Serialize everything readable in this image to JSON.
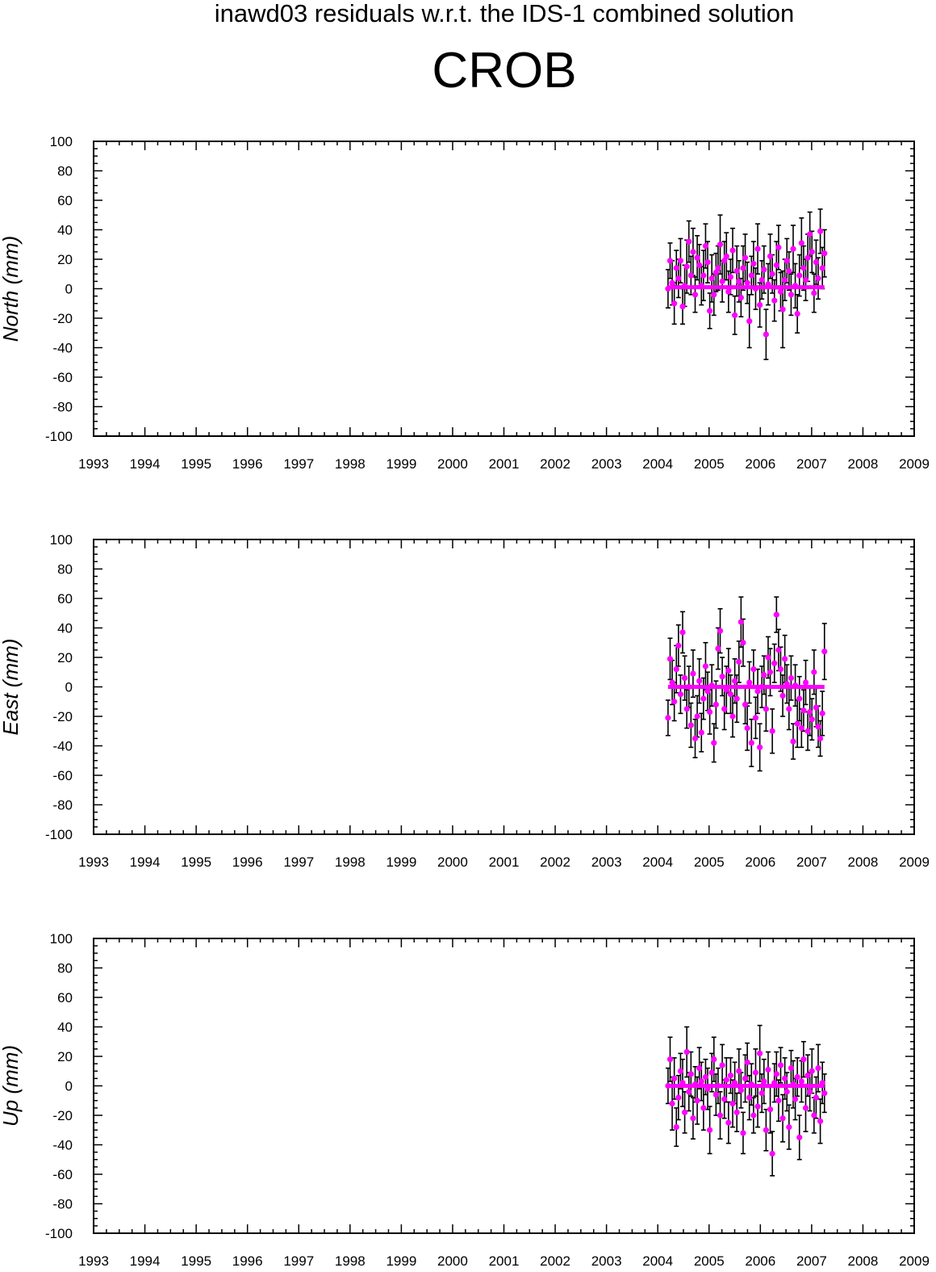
{
  "title": "inawd03 residuals w.r.t. the IDS-1 combined solution",
  "station": "CROB",
  "colors": {
    "marker": "#ff00ff",
    "errorbar": "#000000",
    "axis": "#000000"
  },
  "chart_data": [
    {
      "type": "scatter",
      "ylabel": "North (mm)",
      "xlim": [
        1993,
        2009
      ],
      "ylim": [
        -100,
        100
      ],
      "xticks": [
        1993,
        1994,
        1995,
        1996,
        1997,
        1998,
        1999,
        2000,
        2001,
        2002,
        2003,
        2004,
        2005,
        2006,
        2007,
        2008,
        2009
      ],
      "yticks": [
        100,
        80,
        60,
        40,
        20,
        0,
        -20,
        -40,
        -60,
        -80,
        -100
      ],
      "grid": false,
      "series": [
        {
          "x_range": [
            2004.2,
            2007.25
          ],
          "y": [
            0,
            19,
            4,
            -10,
            14,
            7,
            19,
            -12,
            2,
            15,
            32,
            9,
            25,
            -4,
            21,
            16,
            2,
            9,
            29,
            18,
            -15,
            7,
            -4,
            11,
            14,
            30,
            5,
            19,
            22,
            -2,
            8,
            26,
            -18,
            12,
            5,
            -6,
            14,
            21,
            4,
            -22,
            9,
            17,
            0,
            27,
            -11,
            6,
            13,
            -31,
            3,
            22,
            10,
            -8,
            16,
            28,
            -2,
            -14,
            6,
            19,
            12,
            -4,
            27,
            2,
            -17,
            9,
            31,
            14,
            6,
            21,
            37,
            25,
            -3,
            18,
            7,
            39,
            14,
            24
          ],
          "err": [
            13,
            12,
            15,
            14,
            12,
            13,
            15,
            12,
            14,
            18,
            14,
            13,
            16,
            12,
            15,
            14,
            13,
            17,
            15,
            14,
            12,
            16,
            14,
            13,
            15,
            20,
            14,
            13,
            16,
            14,
            12,
            15,
            13,
            17,
            14,
            13,
            15,
            16,
            14,
            18,
            13,
            15,
            14,
            17,
            15,
            13,
            16,
            17,
            14,
            15,
            13,
            14,
            16,
            15,
            13,
            26,
            14,
            15,
            13,
            14,
            16,
            15,
            13,
            14,
            17,
            15,
            14,
            16,
            15,
            14,
            13,
            15,
            14,
            15,
            14,
            16
          ]
        }
      ],
      "trend": {
        "x": [
          2004.2,
          2007.25
        ],
        "y": [
          1,
          1
        ]
      }
    },
    {
      "type": "scatter",
      "ylabel": "East (mm)",
      "xlim": [
        1993,
        2009
      ],
      "ylim": [
        -100,
        100
      ],
      "xticks": [
        1993,
        1994,
        1995,
        1996,
        1997,
        1998,
        1999,
        2000,
        2001,
        2002,
        2003,
        2004,
        2005,
        2006,
        2007,
        2008,
        2009
      ],
      "yticks": [
        100,
        80,
        60,
        40,
        20,
        0,
        -20,
        -40,
        -60,
        -80,
        -100
      ],
      "grid": false,
      "series": [
        {
          "x_range": [
            2004.2,
            2007.25
          ],
          "y": [
            -21,
            19,
            3,
            -10,
            12,
            28,
            -5,
            37,
            6,
            -15,
            0,
            -26,
            9,
            -35,
            -20,
            4,
            -31,
            -8,
            14,
            -3,
            -17,
            1,
            -38,
            -12,
            26,
            38,
            7,
            -15,
            -2,
            11,
            -5,
            -20,
            4,
            -8,
            17,
            44,
            30,
            -12,
            -28,
            3,
            -38,
            12,
            -21,
            -3,
            -41,
            0,
            8,
            -15,
            20,
            10,
            -30,
            16,
            49,
            25,
            12,
            -6,
            19,
            2,
            -15,
            6,
            -37,
            1,
            -25,
            -8,
            -28,
            -16,
            3,
            -30,
            -17,
            -22,
            10,
            -14,
            -27,
            -35,
            -18,
            24
          ],
          "err": [
            12,
            14,
            15,
            13,
            16,
            14,
            13,
            14,
            15,
            13,
            14,
            15,
            16,
            13,
            14,
            15,
            13,
            14,
            16,
            13,
            15,
            14,
            13,
            16,
            14,
            15,
            13,
            14,
            16,
            15,
            13,
            14,
            15,
            16,
            14,
            17,
            16,
            13,
            15,
            14,
            16,
            13,
            14,
            15,
            16,
            14,
            13,
            15,
            14,
            16,
            15,
            13,
            12,
            14,
            15,
            14,
            16,
            13,
            14,
            15,
            12,
            14,
            16,
            15,
            13,
            14,
            15,
            13,
            16,
            14,
            15,
            13,
            14,
            12,
            15,
            19
          ]
        }
      ],
      "trend": {
        "x": [
          2004.2,
          2007.25
        ],
        "y": [
          0,
          0
        ]
      }
    },
    {
      "type": "scatter",
      "ylabel": "Up (mm)",
      "xlim": [
        1993,
        2009
      ],
      "ylim": [
        -100,
        100
      ],
      "xticks": [
        1993,
        1994,
        1995,
        1996,
        1997,
        1998,
        1999,
        2000,
        2001,
        2002,
        2003,
        2004,
        2005,
        2006,
        2007,
        2008,
        2009
      ],
      "yticks": [
        100,
        80,
        60,
        40,
        20,
        0,
        -20,
        -40,
        -60,
        -80,
        -100
      ],
      "grid": false,
      "series": [
        {
          "x_range": [
            2004.2,
            2007.25
          ],
          "y": [
            0,
            18,
            -12,
            5,
            -28,
            -8,
            10,
            2,
            -18,
            23,
            -4,
            8,
            -22,
            1,
            -10,
            12,
            3,
            -15,
            6,
            -2,
            -30,
            9,
            18,
            -6,
            0,
            -20,
            14,
            -9,
            4,
            -25,
            7,
            -12,
            2,
            -18,
            10,
            -3,
            -32,
            5,
            16,
            -8,
            1,
            -20,
            9,
            -14,
            22,
            -5,
            3,
            -30,
            11,
            -16,
            -46,
            2,
            8,
            -10,
            14,
            -22,
            5,
            -4,
            -28,
            12,
            1,
            -9,
            6,
            -35,
            3,
            18,
            -15,
            7,
            -4,
            10,
            -20,
            -8,
            12,
            -24,
            2,
            -5
          ],
          "err": [
            12,
            15,
            18,
            14,
            13,
            15,
            12,
            16,
            14,
            17,
            13,
            15,
            14,
            12,
            16,
            14,
            13,
            15,
            12,
            14,
            16,
            13,
            15,
            14,
            12,
            16,
            14,
            13,
            15,
            14,
            12,
            16,
            14,
            13,
            15,
            12,
            14,
            16,
            13,
            15,
            14,
            12,
            16,
            14,
            19,
            13,
            15,
            14,
            12,
            16,
            15,
            13,
            15,
            14,
            12,
            16,
            14,
            13,
            15,
            12,
            16,
            14,
            13,
            15,
            14,
            12,
            16,
            14,
            13,
            15,
            12,
            14,
            16,
            15,
            14,
            13
          ]
        }
      ],
      "trend": {
        "x": [
          2004.2,
          2007.25
        ],
        "y": [
          0,
          0
        ]
      }
    }
  ]
}
